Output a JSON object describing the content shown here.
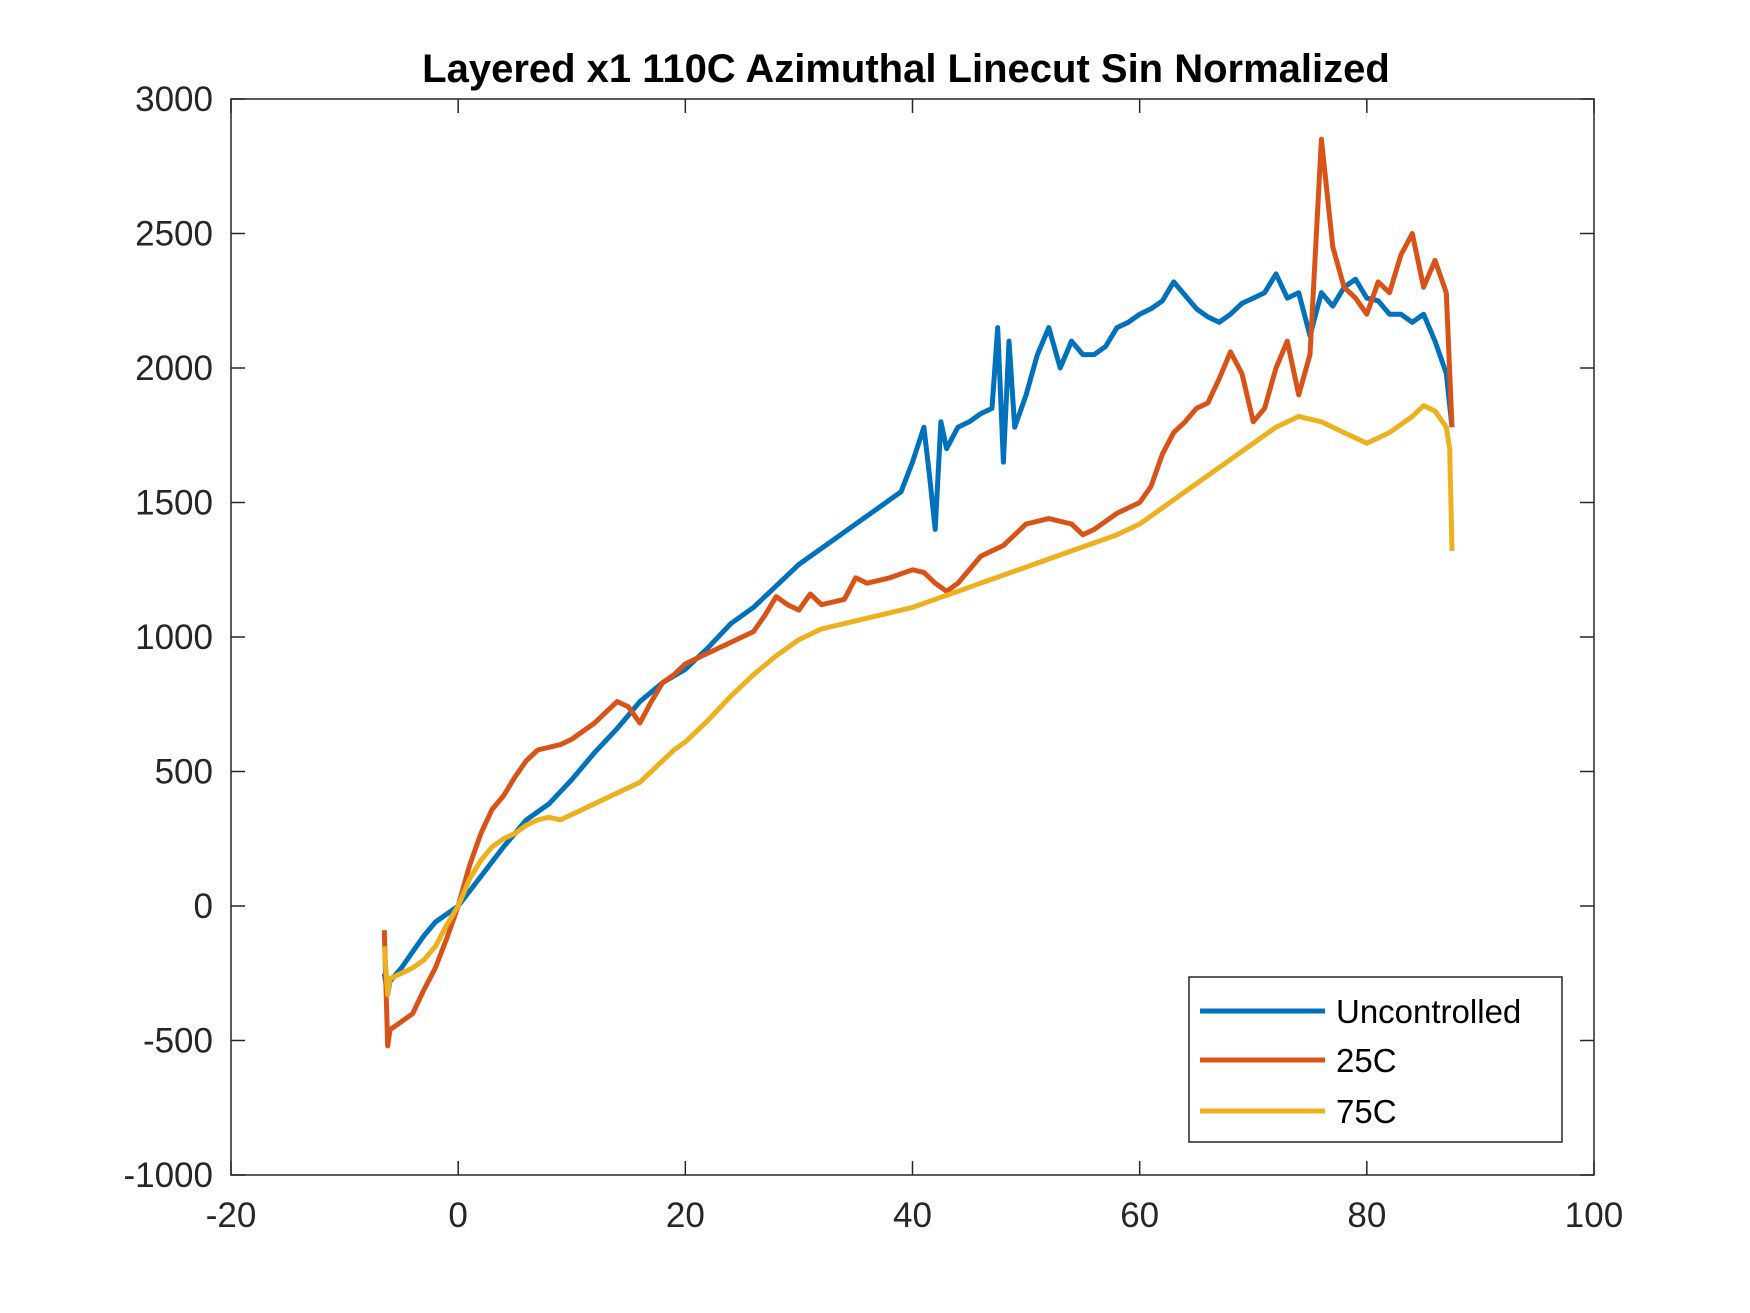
{
  "chart_data": {
    "type": "line",
    "title": "Layered x1 110C Azimuthal Linecut Sin Normalized",
    "xlabel": "",
    "ylabel": "",
    "xlim": [
      -20,
      100
    ],
    "ylim": [
      -1000,
      3000
    ],
    "xticks": [
      "-20",
      "0",
      "20",
      "40",
      "60",
      "80",
      "100"
    ],
    "yticks": [
      "-1000",
      "-500",
      "0",
      "500",
      "1000",
      "1500",
      "2000",
      "2500",
      "3000"
    ],
    "grid": false,
    "legend_position": "bottom-right",
    "series": [
      {
        "name": "Uncontrolled",
        "color": "#0072BD",
        "x": [
          -6.5,
          -6.2,
          -6,
          -5,
          -4,
          -3,
          -2,
          -1,
          0,
          2,
          4,
          6,
          8,
          10,
          12,
          14,
          16,
          18,
          20,
          22,
          24,
          26,
          28,
          30,
          31,
          33,
          35,
          37,
          39,
          40,
          41,
          41.5,
          42,
          42.5,
          43,
          44,
          45,
          46,
          47,
          47.5,
          48,
          48.5,
          49,
          50,
          51,
          52,
          53,
          54,
          55,
          56,
          57,
          58,
          59,
          60,
          61,
          62,
          63,
          64,
          65,
          66,
          67,
          68,
          69,
          70,
          71,
          72,
          73,
          74,
          75,
          76,
          77,
          78,
          79,
          80,
          81,
          82,
          83,
          84,
          85,
          86,
          87,
          87.5
        ],
        "y": [
          -250,
          -330,
          -280,
          -230,
          -170,
          -110,
          -60,
          -30,
          0,
          110,
          220,
          320,
          380,
          470,
          570,
          660,
          760,
          830,
          880,
          960,
          1050,
          1110,
          1190,
          1270,
          1300,
          1360,
          1420,
          1480,
          1540,
          1650,
          1780,
          1600,
          1400,
          1800,
          1700,
          1780,
          1800,
          1830,
          1850,
          2150,
          1650,
          2100,
          1780,
          1900,
          2050,
          2150,
          2000,
          2100,
          2050,
          2050,
          2080,
          2150,
          2170,
          2200,
          2220,
          2250,
          2320,
          2270,
          2220,
          2190,
          2170,
          2200,
          2240,
          2260,
          2280,
          2350,
          2260,
          2280,
          2120,
          2280,
          2230,
          2300,
          2330,
          2260,
          2250,
          2200,
          2200,
          2170,
          2200,
          2100,
          1980,
          1780
        ]
      },
      {
        "name": "25C",
        "color": "#D95319",
        "x": [
          -6.5,
          -6.2,
          -6,
          -5,
          -4,
          -3,
          -2,
          -1,
          0,
          1,
          2,
          3,
          4,
          5,
          6,
          7,
          8,
          9,
          10,
          11,
          12,
          13,
          14,
          15,
          16,
          17,
          18,
          19,
          20,
          22,
          24,
          26,
          27,
          28,
          29,
          30,
          31,
          32,
          34,
          35,
          36,
          38,
          40,
          41,
          42,
          43,
          44,
          46,
          47,
          48,
          49,
          50,
          52,
          54,
          55,
          56,
          58,
          60,
          61,
          62,
          63,
          64,
          65,
          66,
          67,
          68,
          69,
          70,
          71,
          72,
          73,
          74,
          75,
          75.5,
          76,
          77,
          78,
          79,
          80,
          81,
          82,
          83,
          84,
          85,
          86,
          87,
          87.5
        ],
        "y": [
          -90,
          -520,
          -460,
          -430,
          -400,
          -310,
          -230,
          -120,
          0,
          150,
          270,
          360,
          410,
          480,
          540,
          580,
          590,
          600,
          620,
          650,
          680,
          720,
          760,
          740,
          680,
          760,
          830,
          860,
          900,
          940,
          980,
          1020,
          1080,
          1150,
          1120,
          1100,
          1160,
          1120,
          1140,
          1220,
          1200,
          1220,
          1250,
          1240,
          1200,
          1170,
          1200,
          1300,
          1320,
          1340,
          1380,
          1420,
          1440,
          1420,
          1380,
          1400,
          1460,
          1500,
          1560,
          1680,
          1760,
          1800,
          1850,
          1870,
          1960,
          2060,
          1980,
          1800,
          1850,
          2000,
          2100,
          1900,
          2050,
          2450,
          2850,
          2450,
          2300,
          2260,
          2200,
          2320,
          2280,
          2420,
          2500,
          2300,
          2400,
          2280,
          1780
        ]
      },
      {
        "name": "75C",
        "color": "#EDB120",
        "x": [
          -6.5,
          -6.2,
          -6,
          -5,
          -4,
          -3,
          -2,
          -1,
          0,
          1,
          2,
          3,
          4,
          5,
          6,
          7,
          8,
          9,
          10,
          11,
          12,
          13,
          14,
          15,
          16,
          17,
          18,
          19,
          20,
          22,
          24,
          26,
          28,
          30,
          32,
          34,
          36,
          38,
          40,
          42,
          44,
          46,
          48,
          50,
          52,
          54,
          56,
          58,
          60,
          62,
          64,
          66,
          68,
          70,
          72,
          74,
          76,
          78,
          80,
          82,
          84,
          85,
          86,
          87,
          87.3,
          87.5
        ],
        "y": [
          -150,
          -330,
          -270,
          -250,
          -230,
          -200,
          -150,
          -70,
          0,
          100,
          170,
          220,
          250,
          270,
          300,
          320,
          330,
          320,
          340,
          360,
          380,
          400,
          420,
          440,
          460,
          500,
          540,
          580,
          610,
          690,
          780,
          860,
          930,
          990,
          1030,
          1050,
          1070,
          1090,
          1110,
          1140,
          1170,
          1200,
          1230,
          1260,
          1290,
          1320,
          1350,
          1380,
          1420,
          1480,
          1540,
          1600,
          1660,
          1720,
          1780,
          1820,
          1800,
          1760,
          1720,
          1760,
          1820,
          1860,
          1840,
          1780,
          1700,
          1320
        ]
      }
    ]
  }
}
